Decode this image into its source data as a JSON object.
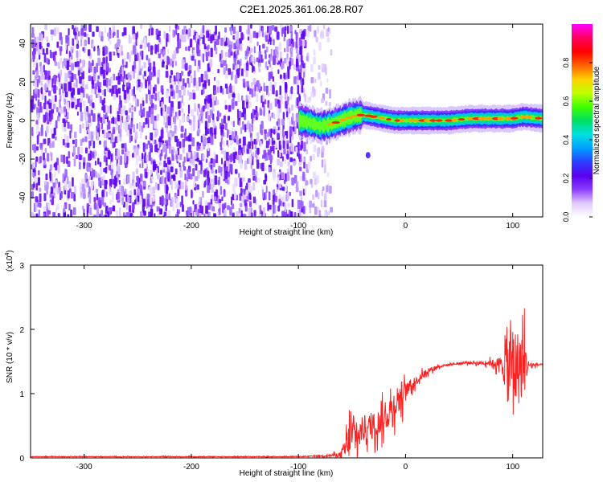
{
  "figure": {
    "title": "C2E1.2025.361.06.28.R07"
  },
  "chart_data": [
    {
      "type": "heatmap",
      "title": "",
      "xlabel": "Height of straight line (km)",
      "ylabel": "Frequency (Hz)",
      "xlim": [
        -350,
        128
      ],
      "ylim": [
        -50,
        50
      ],
      "xticks": [
        -300,
        -200,
        -100,
        0,
        100
      ],
      "yticks": [
        -40,
        -20,
        0,
        20,
        40
      ],
      "grid": false,
      "colorbar": {
        "label": "Normalized spectral amplitude",
        "range": [
          0,
          1
        ],
        "ticks": [
          "0.0",
          "0.2",
          "0.4",
          "0.6",
          "0.8"
        ],
        "colors": [
          "#ffffff",
          "#e0c8ff",
          "#8a3cff",
          "#5a00f0",
          "#2a40ff",
          "#00a0ff",
          "#00e0e0",
          "#00e060",
          "#40ff00",
          "#c0ff00",
          "#ffd000",
          "#ff6000",
          "#ff0000",
          "#ff0060",
          "#ff00ff"
        ]
      },
      "noise_region": {
        "x_range": [
          -350,
          -80
        ],
        "freq_range": [
          -50,
          50
        ]
      },
      "ridge": {
        "x": [
          -100,
          -90,
          -80,
          -70,
          -60,
          -50,
          -40,
          -30,
          -20,
          -10,
          0,
          20,
          40,
          60,
          80,
          100,
          110,
          128
        ],
        "freq": [
          0,
          -1,
          -3,
          -2,
          0,
          2,
          3,
          2,
          1,
          0,
          0,
          0,
          0,
          1,
          1,
          1,
          2,
          1
        ]
      },
      "outlier": {
        "x": -35,
        "freq": -18
      }
    },
    {
      "type": "line",
      "title": "",
      "xlabel": "Height of straight line (km)",
      "ylabel": "SNR (10 * v/v)",
      "y_multiplier": "(x10",
      "y_multiplier_exp": "4",
      "xlim": [
        -350,
        128
      ],
      "ylim": [
        0,
        3
      ],
      "xticks": [
        -300,
        -200,
        -100,
        0,
        100
      ],
      "yticks": [
        0,
        1,
        2,
        3
      ],
      "grid": false,
      "series": [
        {
          "color": "#ff2020",
          "envelope": {
            "x": [
              -350,
              -100,
              -80,
              -60,
              -55,
              -50,
              -45,
              -40,
              -30,
              -20,
              -10,
              -5,
              0,
              10,
              20,
              30,
              40,
              50,
              60,
              70,
              80,
              90,
              95,
              100,
              105,
              110,
              115,
              128
            ],
            "base": [
              0.02,
              0.02,
              0.03,
              0.05,
              0.2,
              0.35,
              0.3,
              0.45,
              0.5,
              0.6,
              0.85,
              0.95,
              1.05,
              1.2,
              1.35,
              1.42,
              1.45,
              1.47,
              1.48,
              1.48,
              1.48,
              1.45,
              1.4,
              1.45,
              1.4,
              1.45,
              1.45,
              1.45
            ],
            "amplitude": [
              0.01,
              0.01,
              0.02,
              0.08,
              0.55,
              0.7,
              0.5,
              0.45,
              0.45,
              0.45,
              0.5,
              0.6,
              0.25,
              0.15,
              0.1,
              0.05,
              0.04,
              0.04,
              0.05,
              0.06,
              0.1,
              0.3,
              1.2,
              1.4,
              1.3,
              1.2,
              0.1,
              0.02
            ]
          }
        }
      ]
    }
  ]
}
